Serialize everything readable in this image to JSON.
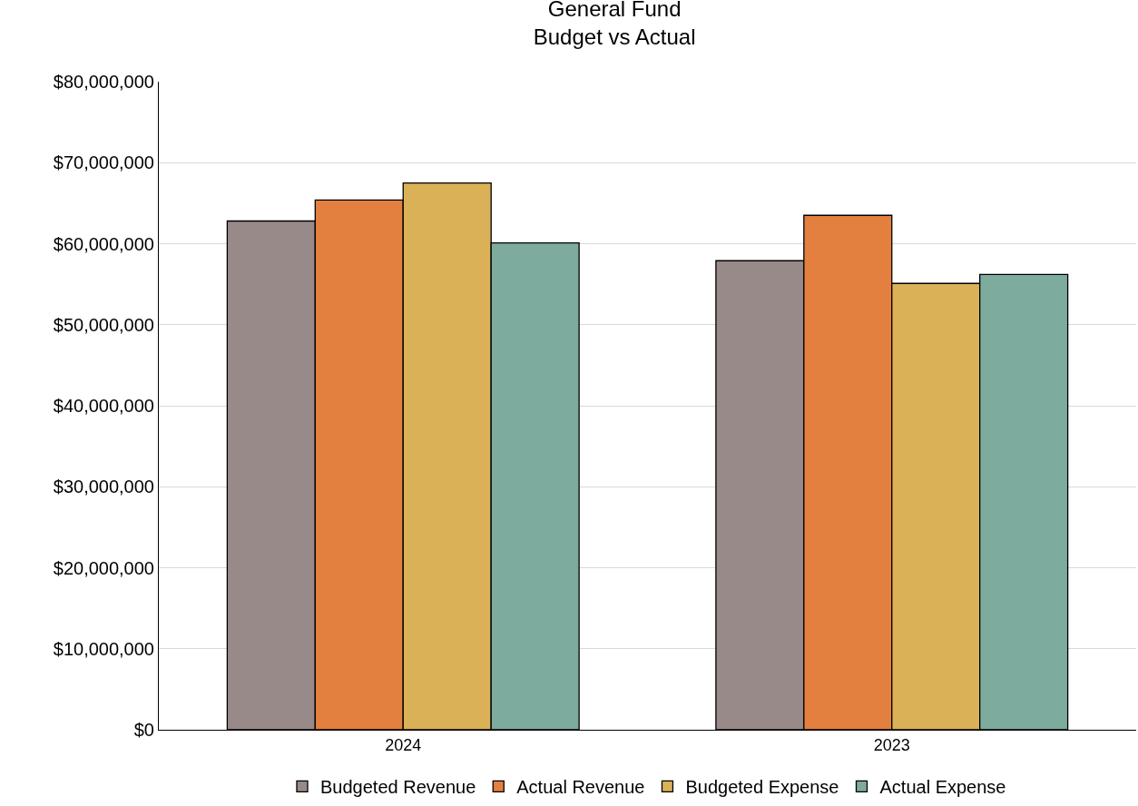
{
  "chart_data": {
    "type": "bar",
    "title": "General Fund\nBudget vs Actual",
    "categories": [
      "2024",
      "2023"
    ],
    "series": [
      {
        "name": "Budgeted Revenue",
        "color": "#988a88",
        "values": [
          62800000,
          57900000
        ]
      },
      {
        "name": "Actual Revenue",
        "color": "#e3803f",
        "values": [
          65400000,
          63500000
        ]
      },
      {
        "name": "Budgeted Expense",
        "color": "#dbb158",
        "values": [
          67500000,
          55100000
        ]
      },
      {
        "name": "Actual Expense",
        "color": "#7dab9e",
        "values": [
          60100000,
          56200000
        ]
      }
    ],
    "ylim": [
      0,
      80000000
    ],
    "yticks": [
      {
        "value": 0,
        "label": "$0"
      },
      {
        "value": 10000000,
        "label": "$10,000,000"
      },
      {
        "value": 20000000,
        "label": "$20,000,000"
      },
      {
        "value": 30000000,
        "label": "$30,000,000"
      },
      {
        "value": 40000000,
        "label": "$40,000,000"
      },
      {
        "value": 50000000,
        "label": "$50,000,000"
      },
      {
        "value": 60000000,
        "label": "$60,000,000"
      },
      {
        "value": 70000000,
        "label": "$70,000,000"
      },
      {
        "value": 80000000,
        "label": "$80,000,000"
      }
    ],
    "grid": "y",
    "legend": "bottom"
  }
}
